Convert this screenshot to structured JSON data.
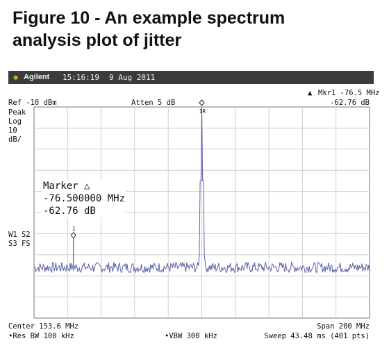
{
  "figure": {
    "title_line1": "Figure 10 - An example spectrum",
    "title_line2": "analysis plot of jitter"
  },
  "header": {
    "brand": "Agilent",
    "time": "15:16:19",
    "date": "9 Aug 2011",
    "logo_icon": "starburst-icon",
    "bar_color": "#3b3b3b"
  },
  "settings": {
    "ref_level": "Ref -10 dBm",
    "atten": "Atten 5 dB",
    "mkr_label": "Mkr1  -76.5 MHz",
    "mkr_delta_icon": "triangle-delta-icon",
    "mkr_value": "-62.76 dB",
    "peak": "Peak",
    "log": "Log",
    "scale_value": "10",
    "scale_unit": "dB/",
    "w1s2": "W1 S2",
    "s3fs": "S3 FS",
    "center": "Center 153.6 MHz",
    "span": "Span 200 MHz",
    "res_bw": "•Res BW 100 kHz",
    "vbw": "•VBW 300 kHz",
    "sweep": "Sweep 43.48 ms (401 pts)"
  },
  "marker_readout": {
    "line1": "Marker △",
    "line2": "-76.500000 MHz",
    "line3": "-62.76 dB"
  },
  "markers": {
    "ref_label": "1R",
    "delta_label": "1"
  },
  "chart_data": {
    "type": "line",
    "x_range_mhz": [
      53.6,
      253.6
    ],
    "y_range_db": [
      -110,
      -10
    ],
    "y_divisions": 10,
    "x_divisions": 10,
    "grid": true,
    "points": 401,
    "noise_floor_db": -86,
    "noise_ripple_db": 2.5,
    "series": [
      {
        "peaks": [
          {
            "x_mhz": 153.6,
            "y_db": -10
          }
        ]
      }
    ],
    "markers": [
      {
        "label": "1R",
        "x_mhz": 153.6,
        "y_db": -10
      },
      {
        "label": "1",
        "x_mhz": 77.1,
        "y_db": -72.76
      }
    ],
    "trace_color": "#5a5fa8",
    "grid_color": "#cfcfcf"
  }
}
